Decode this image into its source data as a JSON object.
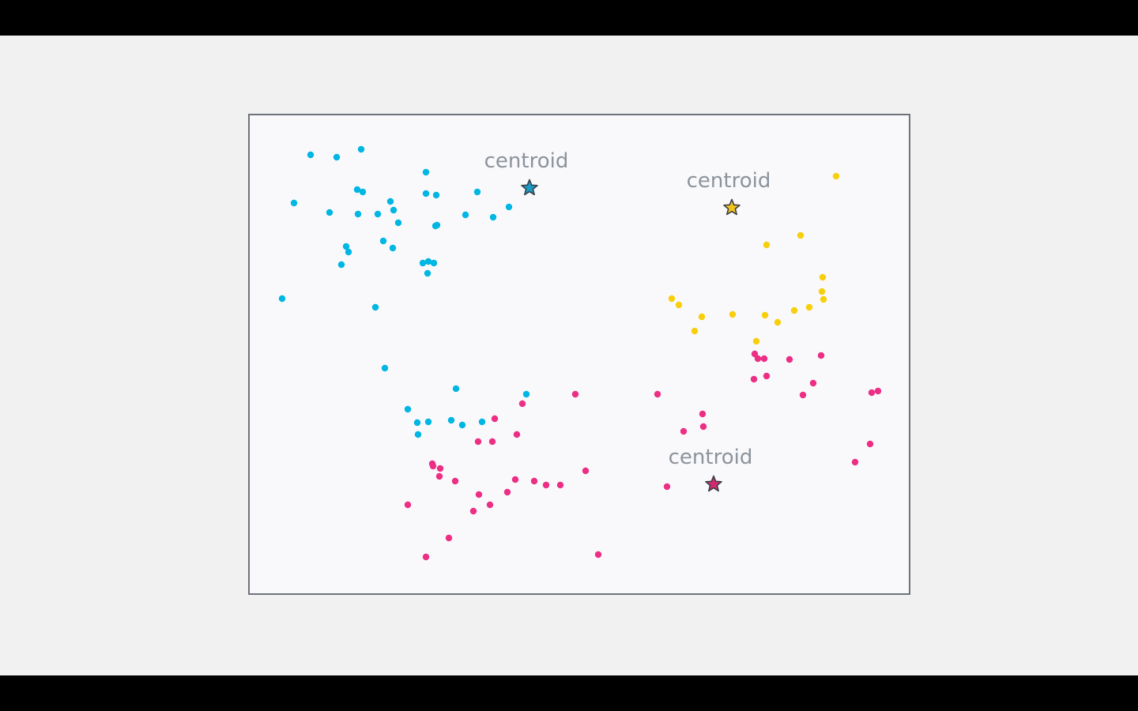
{
  "chart_data": {
    "type": "scatter",
    "title": "",
    "xlabel": "",
    "ylabel": "",
    "xlim": [
      0,
      834
    ],
    "ylim": [
      0,
      605
    ],
    "grid": false,
    "legend": "none",
    "clusters": [
      {
        "color": "#00b6e3",
        "centroid": {
          "label": "centroid",
          "x": 354,
          "y": 513,
          "star_color": "#1a9ac4"
        },
        "points": [
          [
            77,
            555
          ],
          [
            110,
            552
          ],
          [
            141,
            562
          ],
          [
            223,
            533
          ],
          [
            56,
            494
          ],
          [
            101,
            482
          ],
          [
            136,
            511
          ],
          [
            143,
            508
          ],
          [
            178,
            496
          ],
          [
            223,
            506
          ],
          [
            236,
            504
          ],
          [
            288,
            508
          ],
          [
            137,
            480
          ],
          [
            162,
            480
          ],
          [
            182,
            485
          ],
          [
            188,
            469
          ],
          [
            235,
            465
          ],
          [
            237,
            466
          ],
          [
            273,
            479
          ],
          [
            308,
            476
          ],
          [
            328,
            489
          ],
          [
            169,
            446
          ],
          [
            181,
            437
          ],
          [
            125,
            432
          ],
          [
            122,
            439
          ],
          [
            116,
            416
          ],
          [
            219,
            418
          ],
          [
            226,
            420
          ],
          [
            233,
            418
          ],
          [
            225,
            405
          ],
          [
            41,
            373
          ],
          [
            159,
            362
          ],
          [
            171,
            285
          ],
          [
            261,
            259
          ],
          [
            350,
            252
          ],
          [
            200,
            233
          ],
          [
            212,
            216
          ],
          [
            226,
            217
          ],
          [
            255,
            219
          ],
          [
            269,
            213
          ],
          [
            294,
            217
          ],
          [
            213,
            201
          ]
        ]
      },
      {
        "color": "#f7cf0c",
        "centroid": {
          "label": "centroid",
          "x": 610,
          "y": 488,
          "star_color": "#f2c51d"
        },
        "points": [
          [
            742,
            528
          ],
          [
            697,
            453
          ],
          [
            654,
            441
          ],
          [
            725,
            400
          ],
          [
            724,
            382
          ],
          [
            726,
            372
          ],
          [
            534,
            373
          ],
          [
            543,
            365
          ],
          [
            572,
            350
          ],
          [
            611,
            353
          ],
          [
            652,
            352
          ],
          [
            689,
            358
          ],
          [
            708,
            362
          ],
          [
            668,
            343
          ],
          [
            563,
            332
          ],
          [
            641,
            319
          ]
        ]
      },
      {
        "color": "#ec2f84",
        "centroid": {
          "label": "centroid",
          "x": 587,
          "y": 138,
          "star_color": "#d32872"
        },
        "points": [
          [
            639,
            303
          ],
          [
            643,
            297
          ],
          [
            651,
            297
          ],
          [
            683,
            296
          ],
          [
            723,
            301
          ],
          [
            638,
            271
          ],
          [
            654,
            275
          ],
          [
            713,
            266
          ],
          [
            700,
            251
          ],
          [
            787,
            254
          ],
          [
            795,
            256
          ],
          [
            516,
            252
          ],
          [
            573,
            227
          ],
          [
            574,
            211
          ],
          [
            549,
            205
          ],
          [
            785,
            189
          ],
          [
            766,
            166
          ],
          [
            345,
            240
          ],
          [
            412,
            252
          ],
          [
            310,
            221
          ],
          [
            338,
            201
          ],
          [
            289,
            192
          ],
          [
            307,
            192
          ],
          [
            231,
            164
          ],
          [
            232,
            161
          ],
          [
            241,
            158
          ],
          [
            240,
            148
          ],
          [
            260,
            142
          ],
          [
            336,
            144
          ],
          [
            360,
            142
          ],
          [
            375,
            137
          ],
          [
            393,
            137
          ],
          [
            425,
            155
          ],
          [
            290,
            125
          ],
          [
            326,
            128
          ],
          [
            304,
            112
          ],
          [
            283,
            104
          ],
          [
            200,
            112
          ],
          [
            528,
            135
          ],
          [
            252,
            70
          ],
          [
            223,
            46
          ],
          [
            441,
            49
          ]
        ]
      }
    ],
    "centroid_labels": [
      "centroid",
      "centroid",
      "centroid"
    ]
  }
}
